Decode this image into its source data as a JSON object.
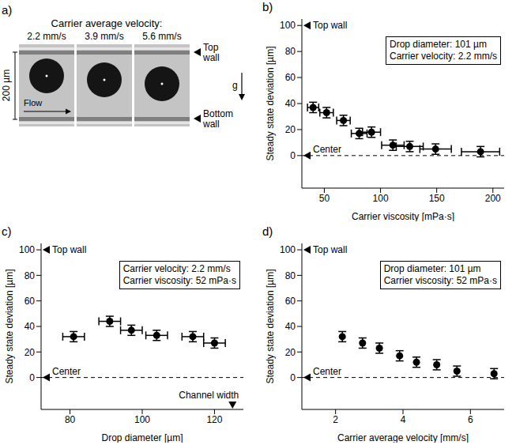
{
  "panel_a": {
    "label": "a)",
    "title": "Carrier average velocity:",
    "velocities": [
      "2.2 mm/s",
      "3.9 mm/s",
      "5.6 mm/s"
    ],
    "scale_bar": "200 µm",
    "flow": "Flow",
    "gravity": "g",
    "top_wall": "Top wall",
    "bottom_wall": "Bottom wall"
  },
  "chart_data": [
    {
      "label": "b)",
      "type": "scatter",
      "x_label": "Carrier viscosity [mPa·s]",
      "y_label": "Steady state deviation [µm]",
      "info": [
        "Drop diameter: 101 µm",
        "Carrier velocity: 2.2 mm/s"
      ],
      "annotations": [
        {
          "text": "Top wall",
          "y": 100
        },
        {
          "text": "Center",
          "y": 0,
          "line_style": "dashed"
        }
      ],
      "x": [
        40,
        52,
        67,
        81,
        92,
        111,
        126,
        149,
        189
      ],
      "values": [
        37,
        33,
        27,
        17,
        18,
        8,
        7,
        5,
        3
      ],
      "x_errors": [
        5,
        6,
        6,
        7,
        8,
        10,
        12,
        14,
        17
      ],
      "y_errors": [
        4,
        4,
        4,
        4,
        4,
        4,
        4,
        4,
        4
      ],
      "xlim": [
        30,
        210
      ],
      "xticks": [
        50,
        100,
        150,
        200
      ],
      "ylim": [
        -25,
        105
      ],
      "yticks": [
        0,
        20,
        40,
        60,
        80,
        100
      ],
      "grid": false,
      "color": "#000000",
      "marker": "circle"
    },
    {
      "label": "c)",
      "type": "scatter",
      "x_label": "Drop diameter [µm]",
      "y_label": "Steady state deviation [µm]",
      "info": [
        "Carrier velocity: 2.2 mm/s",
        "Carrier viscosity: 52 mPa·s"
      ],
      "annotations": [
        {
          "text": "Top wall",
          "y": 100
        },
        {
          "text": "Center",
          "y": 0,
          "line_style": "dashed"
        },
        {
          "text": "Channel width",
          "x": 125
        }
      ],
      "x": [
        81,
        91,
        97,
        104,
        114,
        120
      ],
      "values": [
        32,
        44,
        37,
        33,
        32,
        27
      ],
      "x_errors": [
        3,
        3,
        3,
        3,
        3,
        3
      ],
      "y_errors": [
        4,
        4,
        4,
        4,
        4,
        4
      ],
      "xlim": [
        72,
        128
      ],
      "xticks": [
        80,
        100,
        120
      ],
      "ylim": [
        -25,
        105
      ],
      "yticks": [
        0,
        20,
        40,
        60,
        80,
        100
      ],
      "grid": false,
      "color": "#000000",
      "marker": "circle"
    },
    {
      "label": "d)",
      "type": "scatter",
      "x_label": "Carrier average velocity [mm/s]",
      "y_label": "Steady state deviation [µm]",
      "info": [
        "Drop diameter: 101 µm",
        "Carrier viscosity: 52 mPa·s"
      ],
      "annotations": [
        {
          "text": "Top wall",
          "y": 100
        },
        {
          "text": "Center",
          "y": 0,
          "line_style": "dashed"
        }
      ],
      "x": [
        2.2,
        2.8,
        3.3,
        3.9,
        4.4,
        5.0,
        5.6,
        6.7
      ],
      "values": [
        32,
        27,
        23,
        17,
        12,
        10,
        5,
        3
      ],
      "y_errors": [
        4,
        4,
        4,
        4,
        4,
        4,
        4,
        4
      ],
      "xlim": [
        1,
        7
      ],
      "xticks": [
        2,
        4,
        6
      ],
      "ylim": [
        -25,
        105
      ],
      "yticks": [
        0,
        20,
        40,
        60,
        80,
        100
      ],
      "grid": false,
      "color": "#000000",
      "marker": "circle"
    }
  ]
}
